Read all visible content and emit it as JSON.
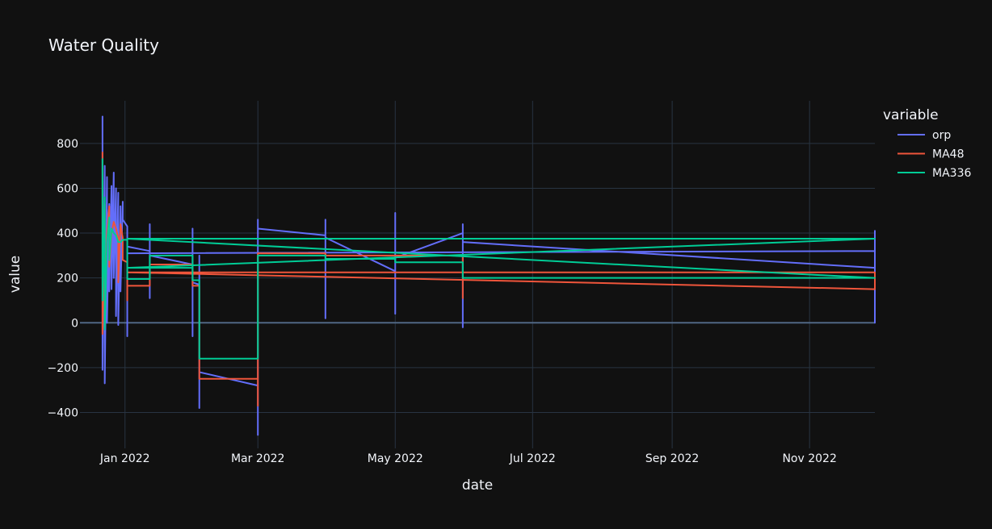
{
  "chart_data": {
    "type": "line",
    "title": "Water Quality",
    "xlabel": "date",
    "ylabel": "value",
    "x_axis_type": "date",
    "xlim": [
      "2021-12-12",
      "2022-11-30"
    ],
    "ylim": [
      -560,
      990
    ],
    "x_ticks": [
      {
        "date": "2022-01-01",
        "label": "Jan 2022"
      },
      {
        "date": "2022-03-01",
        "label": "Mar 2022"
      },
      {
        "date": "2022-05-01",
        "label": "May 2022"
      },
      {
        "date": "2022-07-01",
        "label": "Jul 2022"
      },
      {
        "date": "2022-09-01",
        "label": "Sep 2022"
      },
      {
        "date": "2022-11-01",
        "label": "Nov 2022"
      }
    ],
    "y_ticks": [
      -400,
      -200,
      0,
      200,
      400,
      600,
      800
    ],
    "y_tick_labels": [
      "−400",
      "−200",
      "0",
      "200",
      "400",
      "600",
      "800"
    ],
    "grid": true,
    "legend_title": "variable",
    "legend_position": "top-right",
    "series": [
      {
        "name": "orp",
        "color": "#636efa",
        "points": [
          [
            "2021-12-22",
            500
          ],
          [
            "2021-12-22",
            920
          ],
          [
            "2021-12-22",
            -210
          ],
          [
            "2021-12-23",
            700
          ],
          [
            "2021-12-23",
            -270
          ],
          [
            "2021-12-24",
            650
          ],
          [
            "2021-12-24",
            0
          ],
          [
            "2021-12-25",
            530
          ],
          [
            "2021-12-25",
            140
          ],
          [
            "2021-12-26",
            610
          ],
          [
            "2021-12-26",
            150
          ],
          [
            "2021-12-27",
            670
          ],
          [
            "2021-12-27",
            200
          ],
          [
            "2021-12-28",
            600
          ],
          [
            "2021-12-28",
            30
          ],
          [
            "2021-12-29",
            580
          ],
          [
            "2021-12-29",
            -10
          ],
          [
            "2021-12-30",
            520
          ],
          [
            "2021-12-30",
            140
          ],
          [
            "2021-12-31",
            540
          ],
          [
            "2021-12-31",
            460
          ],
          [
            "2022-01-02",
            430
          ],
          [
            "2022-01-02",
            -60
          ],
          [
            "2022-01-02",
            340
          ],
          [
            "2022-01-12",
            320
          ],
          [
            "2022-01-12",
            440
          ],
          [
            "2022-01-12",
            110
          ],
          [
            "2022-01-12",
            300
          ],
          [
            "2022-01-31",
            260
          ],
          [
            "2022-01-31",
            420
          ],
          [
            "2022-01-31",
            -60
          ],
          [
            "2022-01-31",
            180
          ],
          [
            "2022-02-03",
            170
          ],
          [
            "2022-02-03",
            300
          ],
          [
            "2022-02-03",
            -380
          ],
          [
            "2022-02-03",
            -220
          ],
          [
            "2022-03-01",
            -280
          ],
          [
            "2022-03-01",
            460
          ],
          [
            "2022-03-01",
            -500
          ],
          [
            "2022-03-01",
            420
          ],
          [
            "2022-03-31",
            390
          ],
          [
            "2022-03-31",
            460
          ],
          [
            "2022-03-31",
            20
          ],
          [
            "2022-03-31",
            380
          ],
          [
            "2022-05-01",
            230
          ],
          [
            "2022-05-01",
            490
          ],
          [
            "2022-05-01",
            40
          ],
          [
            "2022-05-01",
            290
          ],
          [
            "2022-05-31",
            400
          ],
          [
            "2022-05-31",
            440
          ],
          [
            "2022-05-31",
            -20
          ],
          [
            "2022-05-31",
            360
          ],
          [
            "2022-11-30",
            245
          ],
          [
            "2022-11-30",
            410
          ],
          [
            "2022-11-30",
            0
          ],
          [
            "2022-11-30",
            320
          ],
          [
            "2022-01-02",
            310
          ],
          [
            "2022-11-30",
            320
          ]
        ]
      },
      {
        "name": "MA48",
        "color": "#ef553b",
        "points": [
          [
            "2021-12-22",
            400
          ],
          [
            "2021-12-22",
            760
          ],
          [
            "2021-12-22",
            -50
          ],
          [
            "2021-12-23",
            530
          ],
          [
            "2021-12-23",
            -20
          ],
          [
            "2021-12-24",
            400
          ],
          [
            "2021-12-25",
            520
          ],
          [
            "2021-12-25",
            250
          ],
          [
            "2021-12-26",
            400
          ],
          [
            "2021-12-27",
            450
          ],
          [
            "2021-12-28",
            420
          ],
          [
            "2021-12-29",
            380
          ],
          [
            "2021-12-29",
            180
          ],
          [
            "2021-12-30",
            440
          ],
          [
            "2021-12-31",
            380
          ],
          [
            "2021-12-31",
            280
          ],
          [
            "2022-01-02",
            270
          ],
          [
            "2022-01-02",
            100
          ],
          [
            "2022-01-02",
            165
          ],
          [
            "2022-01-12",
            165
          ],
          [
            "2022-01-12",
            260
          ],
          [
            "2022-01-31",
            260
          ],
          [
            "2022-01-31",
            165
          ],
          [
            "2022-02-03",
            165
          ],
          [
            "2022-02-03",
            -250
          ],
          [
            "2022-03-01",
            -250
          ],
          [
            "2022-03-01",
            -370
          ],
          [
            "2022-03-01",
            310
          ],
          [
            "2022-03-31",
            310
          ],
          [
            "2022-03-31",
            300
          ],
          [
            "2022-05-01",
            300
          ],
          [
            "2022-05-31",
            300
          ],
          [
            "2022-05-31",
            110
          ],
          [
            "2022-05-31",
            225
          ],
          [
            "2022-11-30",
            225
          ],
          [
            "2022-11-30",
            150
          ],
          [
            "2022-01-02",
            225
          ],
          [
            "2022-11-30",
            225
          ]
        ]
      },
      {
        "name": "MA336",
        "color": "#00cc96",
        "points": [
          [
            "2021-12-22",
            360
          ],
          [
            "2021-12-22",
            730
          ],
          [
            "2021-12-22",
            100
          ],
          [
            "2021-12-23",
            560
          ],
          [
            "2021-12-23",
            -30
          ],
          [
            "2021-12-24",
            360
          ],
          [
            "2021-12-25",
            470
          ],
          [
            "2021-12-25",
            280
          ],
          [
            "2021-12-26",
            420
          ],
          [
            "2021-12-27",
            400
          ],
          [
            "2021-12-28",
            390
          ],
          [
            "2021-12-29",
            360
          ],
          [
            "2021-12-30",
            360
          ],
          [
            "2021-12-31",
            370
          ],
          [
            "2022-01-02",
            370
          ],
          [
            "2022-01-02",
            195
          ],
          [
            "2022-01-12",
            195
          ],
          [
            "2022-01-12",
            300
          ],
          [
            "2022-01-31",
            300
          ],
          [
            "2022-01-31",
            190
          ],
          [
            "2022-02-03",
            190
          ],
          [
            "2022-02-03",
            -160
          ],
          [
            "2022-03-01",
            -160
          ],
          [
            "2022-03-01",
            300
          ],
          [
            "2022-03-31",
            300
          ],
          [
            "2022-03-31",
            285
          ],
          [
            "2022-05-01",
            285
          ],
          [
            "2022-05-01",
            270
          ],
          [
            "2022-05-31",
            270
          ],
          [
            "2022-05-31",
            200
          ],
          [
            "2022-11-30",
            200
          ],
          [
            "2022-01-02",
            375
          ],
          [
            "2022-11-30",
            375
          ],
          [
            "2022-01-02",
            245
          ],
          [
            "2022-01-31",
            245
          ]
        ]
      }
    ]
  }
}
